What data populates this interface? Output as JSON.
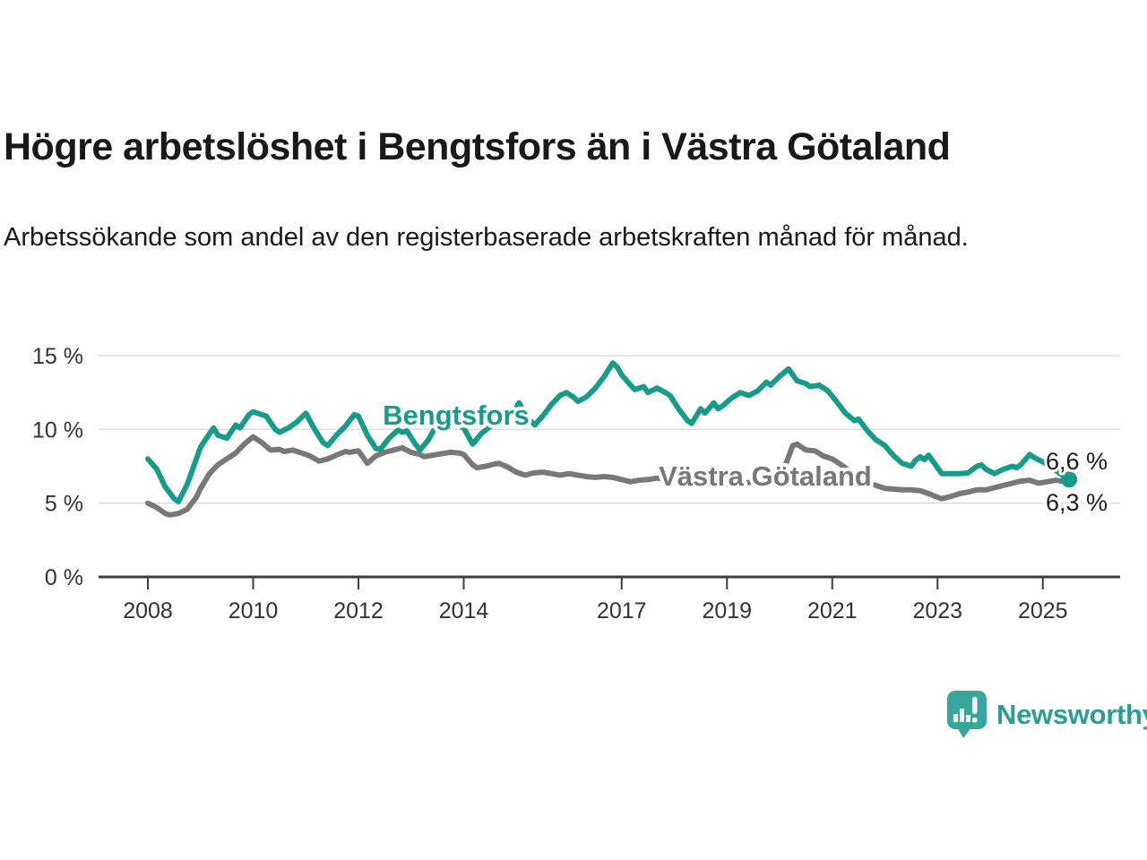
{
  "chart_data": {
    "type": "line",
    "title": "Högre arbetslöshet i Bengtsfors än i Västra Götaland",
    "subtitle": "Arbetssökande som andel av den registerbaserade arbetskraften månad för månad.",
    "xlabel": "",
    "ylabel": "",
    "grid": true,
    "legend_position": "inline-labels-on-lines",
    "x_range": [
      2007.1,
      2026.4
    ],
    "ylim": [
      0,
      16.5
    ],
    "y_axis": {
      "ticks": [
        {
          "value": 0,
          "label": "0 %"
        },
        {
          "value": 5,
          "label": "5 %"
        },
        {
          "value": 10,
          "label": "10 %"
        },
        {
          "value": 15,
          "label": "15 %"
        }
      ]
    },
    "x_axis": {
      "ticks": [
        {
          "value": 2008,
          "label": "2008"
        },
        {
          "value": 2010,
          "label": "2010"
        },
        {
          "value": 2012,
          "label": "2012"
        },
        {
          "value": 2014,
          "label": "2014"
        },
        {
          "value": 2017,
          "label": "2017"
        },
        {
          "value": 2019,
          "label": "2019"
        },
        {
          "value": 2021,
          "label": "2021"
        },
        {
          "value": 2023,
          "label": "2023"
        },
        {
          "value": 2025,
          "label": "2025"
        }
      ]
    },
    "series": [
      {
        "name": "Bengtsfors",
        "color": "#179c8c",
        "end_value_label": "6,6 %",
        "points": [
          [
            2008.0,
            8.0
          ],
          [
            2008.17,
            7.3
          ],
          [
            2008.33,
            6.1
          ],
          [
            2008.5,
            5.3
          ],
          [
            2008.58,
            5.1
          ],
          [
            2008.75,
            6.3
          ],
          [
            2008.92,
            8.0
          ],
          [
            2009.0,
            8.8
          ],
          [
            2009.17,
            9.7
          ],
          [
            2009.25,
            10.1
          ],
          [
            2009.33,
            9.6
          ],
          [
            2009.5,
            9.4
          ],
          [
            2009.67,
            10.3
          ],
          [
            2009.75,
            10.1
          ],
          [
            2009.92,
            11.0
          ],
          [
            2010.0,
            11.2
          ],
          [
            2010.08,
            11.1
          ],
          [
            2010.25,
            10.9
          ],
          [
            2010.42,
            10.0
          ],
          [
            2010.5,
            9.8
          ],
          [
            2010.67,
            10.1
          ],
          [
            2010.83,
            10.5
          ],
          [
            2011.0,
            11.1
          ],
          [
            2011.17,
            10.0
          ],
          [
            2011.33,
            9.1
          ],
          [
            2011.42,
            8.9
          ],
          [
            2011.58,
            9.6
          ],
          [
            2011.75,
            10.2
          ],
          [
            2011.92,
            11.0
          ],
          [
            2012.0,
            10.9
          ],
          [
            2012.17,
            9.6
          ],
          [
            2012.33,
            8.7
          ],
          [
            2012.42,
            8.65
          ],
          [
            2012.58,
            9.4
          ],
          [
            2012.75,
            9.95
          ],
          [
            2012.83,
            9.8
          ],
          [
            2012.92,
            9.9
          ],
          [
            2013.08,
            9.0
          ],
          [
            2013.17,
            8.6
          ],
          [
            2013.33,
            9.3
          ],
          [
            2013.5,
            10.4
          ],
          [
            2013.67,
            10.9
          ],
          [
            2013.83,
            10.5
          ],
          [
            2014.0,
            10.1
          ],
          [
            2014.17,
            9.0
          ],
          [
            2014.33,
            9.7
          ],
          [
            2014.5,
            10.2
          ],
          [
            2014.67,
            10.4
          ],
          [
            2014.83,
            10.4
          ],
          [
            2015.05,
            11.8
          ],
          [
            2015.2,
            10.8
          ],
          [
            2015.35,
            10.3
          ],
          [
            2015.5,
            10.9
          ],
          [
            2015.67,
            11.7
          ],
          [
            2015.83,
            12.3
          ],
          [
            2015.95,
            12.5
          ],
          [
            2016.08,
            12.2
          ],
          [
            2016.17,
            11.9
          ],
          [
            2016.33,
            12.2
          ],
          [
            2016.5,
            12.8
          ],
          [
            2016.67,
            13.6
          ],
          [
            2016.83,
            14.5
          ],
          [
            2016.92,
            14.2
          ],
          [
            2017.0,
            13.7
          ],
          [
            2017.17,
            13.0
          ],
          [
            2017.25,
            12.7
          ],
          [
            2017.42,
            12.9
          ],
          [
            2017.5,
            12.5
          ],
          [
            2017.67,
            12.8
          ],
          [
            2017.83,
            12.5
          ],
          [
            2017.92,
            12.3
          ],
          [
            2018.08,
            11.4
          ],
          [
            2018.25,
            10.6
          ],
          [
            2018.33,
            10.4
          ],
          [
            2018.5,
            11.4
          ],
          [
            2018.58,
            11.1
          ],
          [
            2018.75,
            11.8
          ],
          [
            2018.83,
            11.4
          ],
          [
            2018.92,
            11.6
          ],
          [
            2019.08,
            12.1
          ],
          [
            2019.25,
            12.5
          ],
          [
            2019.42,
            12.3
          ],
          [
            2019.58,
            12.6
          ],
          [
            2019.75,
            13.2
          ],
          [
            2019.83,
            13.0
          ],
          [
            2020.0,
            13.6
          ],
          [
            2020.17,
            14.1
          ],
          [
            2020.33,
            13.3
          ],
          [
            2020.5,
            13.1
          ],
          [
            2020.58,
            12.9
          ],
          [
            2020.75,
            13.0
          ],
          [
            2020.92,
            12.6
          ],
          [
            2021.08,
            11.9
          ],
          [
            2021.25,
            11.1
          ],
          [
            2021.42,
            10.6
          ],
          [
            2021.5,
            10.7
          ],
          [
            2021.67,
            9.9
          ],
          [
            2021.83,
            9.3
          ],
          [
            2022.0,
            8.9
          ],
          [
            2022.17,
            8.2
          ],
          [
            2022.33,
            7.7
          ],
          [
            2022.5,
            7.5
          ],
          [
            2022.58,
            7.9
          ],
          [
            2022.67,
            8.15
          ],
          [
            2022.75,
            7.95
          ],
          [
            2022.83,
            8.25
          ],
          [
            2022.92,
            7.8
          ],
          [
            2023.08,
            7.0
          ],
          [
            2023.25,
            7.0
          ],
          [
            2023.42,
            7.0
          ],
          [
            2023.58,
            7.05
          ],
          [
            2023.75,
            7.5
          ],
          [
            2023.83,
            7.6
          ],
          [
            2023.92,
            7.3
          ],
          [
            2024.08,
            7.0
          ],
          [
            2024.25,
            7.3
          ],
          [
            2024.42,
            7.5
          ],
          [
            2024.5,
            7.4
          ],
          [
            2024.58,
            7.6
          ],
          [
            2024.75,
            8.3
          ],
          [
            2024.83,
            8.1
          ],
          [
            2025.0,
            7.8
          ],
          [
            2025.17,
            7.4
          ],
          [
            2025.33,
            7.0
          ],
          [
            2025.5,
            6.6
          ]
        ]
      },
      {
        "name": "Västra Götaland",
        "color": "#787878",
        "end_value_label": "6,3 %",
        "points": [
          [
            2008.0,
            5.0
          ],
          [
            2008.17,
            4.7
          ],
          [
            2008.33,
            4.3
          ],
          [
            2008.42,
            4.2
          ],
          [
            2008.58,
            4.3
          ],
          [
            2008.75,
            4.6
          ],
          [
            2008.92,
            5.4
          ],
          [
            2009.0,
            6.0
          ],
          [
            2009.17,
            7.0
          ],
          [
            2009.33,
            7.6
          ],
          [
            2009.5,
            8.0
          ],
          [
            2009.67,
            8.4
          ],
          [
            2009.83,
            9.0
          ],
          [
            2010.0,
            9.5
          ],
          [
            2010.17,
            9.1
          ],
          [
            2010.33,
            8.6
          ],
          [
            2010.5,
            8.65
          ],
          [
            2010.58,
            8.5
          ],
          [
            2010.75,
            8.6
          ],
          [
            2010.92,
            8.4
          ],
          [
            2011.08,
            8.2
          ],
          [
            2011.25,
            7.85
          ],
          [
            2011.42,
            8.0
          ],
          [
            2011.58,
            8.25
          ],
          [
            2011.75,
            8.5
          ],
          [
            2011.83,
            8.45
          ],
          [
            2012.0,
            8.55
          ],
          [
            2012.17,
            7.7
          ],
          [
            2012.33,
            8.2
          ],
          [
            2012.5,
            8.45
          ],
          [
            2012.67,
            8.6
          ],
          [
            2012.83,
            8.75
          ],
          [
            2013.0,
            8.45
          ],
          [
            2013.17,
            8.3
          ],
          [
            2013.25,
            8.15
          ],
          [
            2013.42,
            8.25
          ],
          [
            2013.58,
            8.35
          ],
          [
            2013.75,
            8.45
          ],
          [
            2013.92,
            8.4
          ],
          [
            2014.0,
            8.3
          ],
          [
            2014.17,
            7.6
          ],
          [
            2014.25,
            7.4
          ],
          [
            2014.42,
            7.5
          ],
          [
            2014.58,
            7.65
          ],
          [
            2014.67,
            7.7
          ],
          [
            2014.83,
            7.45
          ],
          [
            2015.0,
            7.1
          ],
          [
            2015.17,
            6.9
          ],
          [
            2015.33,
            7.05
          ],
          [
            2015.5,
            7.1
          ],
          [
            2015.67,
            7.0
          ],
          [
            2015.83,
            6.9
          ],
          [
            2016.0,
            7.0
          ],
          [
            2016.17,
            6.9
          ],
          [
            2016.33,
            6.8
          ],
          [
            2016.5,
            6.75
          ],
          [
            2016.67,
            6.8
          ],
          [
            2016.83,
            6.75
          ],
          [
            2017.0,
            6.6
          ],
          [
            2017.17,
            6.45
          ],
          [
            2017.33,
            6.55
          ],
          [
            2017.5,
            6.6
          ],
          [
            2017.67,
            6.7
          ],
          [
            2017.83,
            6.6
          ],
          [
            2018.0,
            6.5
          ],
          [
            2018.17,
            6.3
          ],
          [
            2018.25,
            6.25
          ],
          [
            2018.42,
            6.35
          ],
          [
            2018.58,
            6.4
          ],
          [
            2018.75,
            6.4
          ],
          [
            2018.92,
            6.3
          ],
          [
            2019.08,
            6.25
          ],
          [
            2019.25,
            6.3
          ],
          [
            2019.42,
            6.4
          ],
          [
            2019.58,
            6.5
          ],
          [
            2019.75,
            6.55
          ],
          [
            2019.92,
            6.7
          ],
          [
            2020.08,
            7.3
          ],
          [
            2020.25,
            8.9
          ],
          [
            2020.33,
            9.0
          ],
          [
            2020.5,
            8.6
          ],
          [
            2020.67,
            8.55
          ],
          [
            2020.83,
            8.2
          ],
          [
            2021.0,
            8.0
          ],
          [
            2021.17,
            7.6
          ],
          [
            2021.33,
            7.2
          ],
          [
            2021.5,
            6.8
          ],
          [
            2021.67,
            6.4
          ],
          [
            2021.83,
            6.2
          ],
          [
            2022.0,
            6.0
          ],
          [
            2022.17,
            5.95
          ],
          [
            2022.33,
            5.9
          ],
          [
            2022.5,
            5.9
          ],
          [
            2022.67,
            5.85
          ],
          [
            2022.83,
            5.65
          ],
          [
            2023.0,
            5.4
          ],
          [
            2023.08,
            5.3
          ],
          [
            2023.25,
            5.45
          ],
          [
            2023.42,
            5.65
          ],
          [
            2023.58,
            5.75
          ],
          [
            2023.75,
            5.9
          ],
          [
            2023.92,
            5.9
          ],
          [
            2024.08,
            6.05
          ],
          [
            2024.25,
            6.2
          ],
          [
            2024.42,
            6.35
          ],
          [
            2024.58,
            6.5
          ],
          [
            2024.75,
            6.55
          ],
          [
            2024.92,
            6.35
          ],
          [
            2025.08,
            6.45
          ],
          [
            2025.25,
            6.55
          ],
          [
            2025.42,
            6.45
          ],
          [
            2025.5,
            6.3
          ]
        ]
      }
    ]
  },
  "branding": {
    "logo_text": "Newsworthy",
    "logo_color": "#35a79b",
    "text_color": "#2b9e92"
  }
}
